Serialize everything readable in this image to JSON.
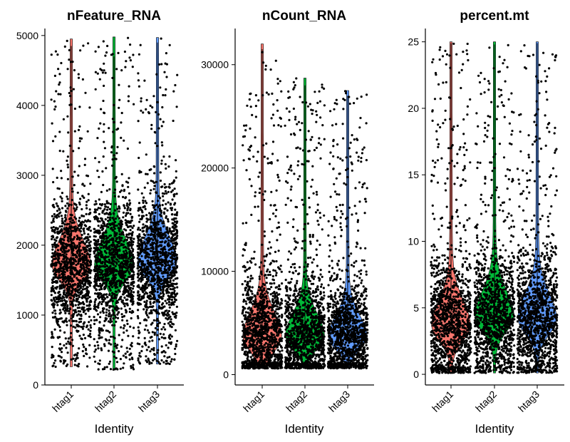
{
  "chart_data": [
    {
      "type": "violin",
      "title": "nFeature_RNA",
      "xlabel": "Identity",
      "ylabel": "",
      "categories": [
        "htag1",
        "htag2",
        "htag3"
      ],
      "colors": [
        "#F8766D",
        "#00BA38",
        "#619CFF"
      ],
      "ylim": [
        0,
        5100
      ],
      "yticks": [
        0,
        1000,
        2000,
        3000,
        4000,
        5000
      ],
      "point_color": "#000000",
      "series": [
        {
          "name": "htag1",
          "min": 260,
          "max": 4950,
          "median": 1700,
          "mode": 1700,
          "upper_whisker": 4850
        },
        {
          "name": "htag2",
          "min": 220,
          "max": 4980,
          "median": 1700,
          "mode": 1700,
          "upper_whisker": 4700
        },
        {
          "name": "htag3",
          "min": 300,
          "max": 4970,
          "median": 1750,
          "mode": 1750,
          "upper_whisker": 4900
        }
      ]
    },
    {
      "type": "violin",
      "title": "nCount_RNA",
      "xlabel": "Identity",
      "ylabel": "",
      "categories": [
        "htag1",
        "htag2",
        "htag3"
      ],
      "colors": [
        "#F8766D",
        "#00BA38",
        "#619CFF"
      ],
      "ylim": [
        -1000,
        33500
      ],
      "yticks": [
        0,
        10000,
        20000,
        30000
      ],
      "yticklabels": [
        "0",
        "10000",
        "20000",
        "30000"
      ],
      "point_color": "#000000",
      "series": [
        {
          "name": "htag1",
          "min": 600,
          "max": 32000,
          "median": 3600,
          "mode": 3600,
          "upper_whisker": 31500
        },
        {
          "name": "htag2",
          "min": 600,
          "max": 28700,
          "median": 3700,
          "mode": 3700,
          "upper_whisker": 28000
        },
        {
          "name": "htag3",
          "min": 600,
          "max": 27500,
          "median": 3600,
          "mode": 3600,
          "upper_whisker": 27000
        }
      ]
    },
    {
      "type": "violin",
      "title": "percent.mt",
      "xlabel": "Identity",
      "ylabel": "",
      "categories": [
        "htag1",
        "htag2",
        "htag3"
      ],
      "colors": [
        "#F8766D",
        "#00BA38",
        "#619CFF"
      ],
      "ylim": [
        -0.8,
        26
      ],
      "yticks": [
        0,
        5,
        10,
        15,
        20,
        25
      ],
      "point_color": "#000000",
      "series": [
        {
          "name": "htag1",
          "min": 0.1,
          "max": 25,
          "median": 3.6,
          "mode": 3.6,
          "upper_whisker": 24.9
        },
        {
          "name": "htag2",
          "min": 0.1,
          "max": 25,
          "median": 4.3,
          "mode": 4.3,
          "upper_whisker": 24.8
        },
        {
          "name": "htag3",
          "min": 0.1,
          "max": 25,
          "median": 4.1,
          "mode": 4.1,
          "upper_whisker": 24.9
        }
      ]
    }
  ]
}
